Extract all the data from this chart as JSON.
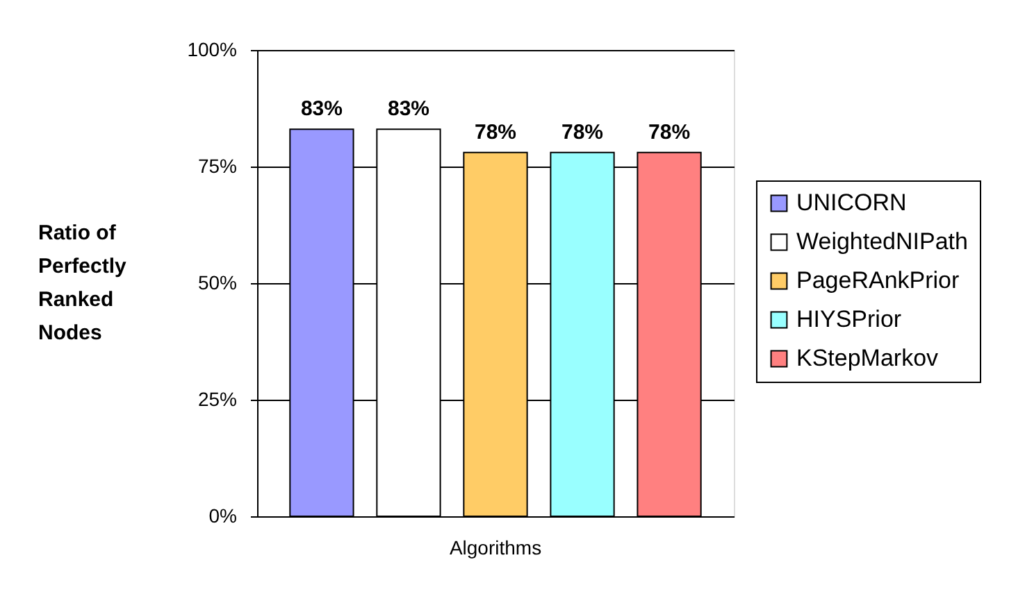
{
  "chart_data": {
    "type": "bar",
    "categories": [
      "Algorithms"
    ],
    "ylabel": "Ratio of Perfectly Ranked Nodes",
    "series": [
      {
        "name": "UNICORN",
        "color": "#9999ff",
        "values": [
          83
        ],
        "value_labels": [
          "83%"
        ]
      },
      {
        "name": "WeightedNIPath",
        "color": "#ffffff",
        "values": [
          83
        ],
        "value_labels": [
          "83%"
        ]
      },
      {
        "name": "PageRAnkPrior",
        "color": "#ffcc66",
        "values": [
          78
        ],
        "value_labels": [
          "78%"
        ]
      },
      {
        "name": "HIYSPrior",
        "color": "#99ffff",
        "values": [
          78
        ],
        "value_labels": [
          "78%"
        ]
      },
      {
        "name": "KStepMarkov",
        "color": "#ff8080",
        "values": [
          78
        ],
        "value_labels": [
          "78%"
        ]
      }
    ],
    "ylim": [
      0,
      100
    ],
    "yticks": [
      {
        "value": 0,
        "label": "0%"
      },
      {
        "value": 25,
        "label": "25%"
      },
      {
        "value": 50,
        "label": "50%"
      },
      {
        "value": 75,
        "label": "75%"
      },
      {
        "value": 100,
        "label": "100%"
      }
    ],
    "grid": "y",
    "legend": "right"
  }
}
